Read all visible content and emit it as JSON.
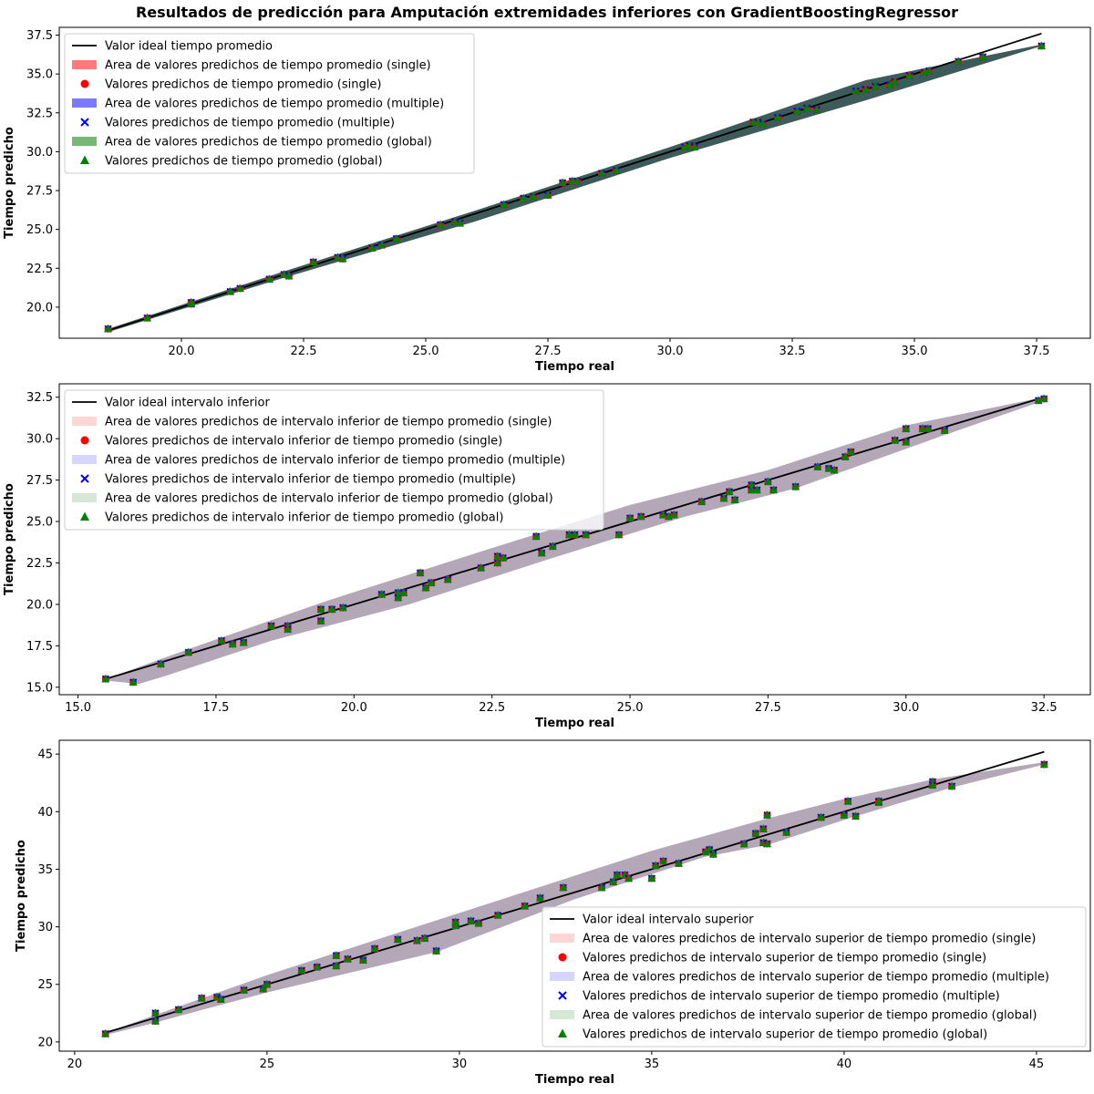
{
  "figure": {
    "suptitle": "Resultados de predicción para Amputación extremidades inferiores con GradientBoostingRegressor",
    "band_color": "#3d5a5a"
  },
  "chart_data": [
    {
      "type": "scatter",
      "xlabel": "Tiempo real",
      "ylabel": "Tiempo predicho",
      "xlim": [
        17.5,
        38.6
      ],
      "ylim": [
        18.0,
        38.0
      ],
      "xticks": [
        20.0,
        22.5,
        25.0,
        27.5,
        30.0,
        32.5,
        35.0,
        37.5
      ],
      "yticks": [
        20.0,
        22.5,
        25.0,
        27.5,
        30.0,
        32.5,
        35.0,
        37.5
      ],
      "xticklabels": [
        "20.0",
        "22.5",
        "25.0",
        "27.5",
        "30.0",
        "32.5",
        "35.0",
        "37.5"
      ],
      "yticklabels": [
        "20.0",
        "22.5",
        "25.0",
        "27.5",
        "30.0",
        "32.5",
        "35.0",
        "37.5"
      ],
      "band_color": "#3e5b5b",
      "legend_position": "upper-left",
      "legend": [
        {
          "kind": "line",
          "color": "#000000",
          "label": "Valor ideal tiempo promedio"
        },
        {
          "kind": "patch",
          "color": "#ff7a7a",
          "label": "Area de valores predichos de tiempo promedio (single)"
        },
        {
          "kind": "circle",
          "color": "#ff0000",
          "label": "Valores predichos de tiempo promedio (single)"
        },
        {
          "kind": "patch",
          "color": "#7a7aff",
          "label": "Area de valores predichos de tiempo promedio (multiple)"
        },
        {
          "kind": "cross",
          "color": "#0000ff",
          "label": "Valores predichos de tiempo promedio (multiple)"
        },
        {
          "kind": "patch",
          "color": "#77b877",
          "label": "Area de valores predichos de tiempo promedio (global)"
        },
        {
          "kind": "triangle",
          "color": "#008000",
          "label": "Valores predichos de tiempo promedio (global)"
        }
      ],
      "ideal_line": [
        [
          18.5,
          18.5
        ],
        [
          37.6,
          37.6
        ]
      ],
      "band_upper": [
        [
          18.5,
          18.6
        ],
        [
          22.0,
          22.2
        ],
        [
          26.0,
          26.2
        ],
        [
          30.0,
          30.3
        ],
        [
          34.0,
          34.6
        ],
        [
          37.6,
          36.9
        ]
      ],
      "band_lower": [
        [
          18.5,
          18.4
        ],
        [
          22.0,
          21.8
        ],
        [
          26.0,
          25.5
        ],
        [
          30.0,
          29.6
        ],
        [
          34.0,
          33.3
        ],
        [
          37.6,
          36.8
        ]
      ],
      "points": [
        [
          18.5,
          18.6
        ],
        [
          19.3,
          19.3
        ],
        [
          20.2,
          20.2
        ],
        [
          20.2,
          20.3
        ],
        [
          21.0,
          21.0
        ],
        [
          21.2,
          21.2
        ],
        [
          21.8,
          21.8
        ],
        [
          22.1,
          22.1
        ],
        [
          22.2,
          22.0
        ],
        [
          22.7,
          22.9
        ],
        [
          23.2,
          23.2
        ],
        [
          23.3,
          23.1
        ],
        [
          23.9,
          23.8
        ],
        [
          24.1,
          24.0
        ],
        [
          24.4,
          24.4
        ],
        [
          25.3,
          25.3
        ],
        [
          25.6,
          25.5
        ],
        [
          25.7,
          25.4
        ],
        [
          26.6,
          26.6
        ],
        [
          27.0,
          27.0
        ],
        [
          27.2,
          27.1
        ],
        [
          27.5,
          27.2
        ],
        [
          27.8,
          28.0
        ],
        [
          28.0,
          28.1
        ],
        [
          28.1,
          28.1
        ],
        [
          28.6,
          28.6
        ],
        [
          28.9,
          28.8
        ],
        [
          30.3,
          30.3
        ],
        [
          30.4,
          30.4
        ],
        [
          30.5,
          30.3
        ],
        [
          31.7,
          31.9
        ],
        [
          31.8,
          31.9
        ],
        [
          31.9,
          31.8
        ],
        [
          32.2,
          32.2
        ],
        [
          32.6,
          32.6
        ],
        [
          32.8,
          32.8
        ],
        [
          33.0,
          32.7
        ],
        [
          33.8,
          33.9
        ],
        [
          34.0,
          34.0
        ],
        [
          34.2,
          34.2
        ],
        [
          34.5,
          34.3
        ],
        [
          34.6,
          34.5
        ],
        [
          34.9,
          34.9
        ],
        [
          35.2,
          35.1
        ],
        [
          35.3,
          35.2
        ],
        [
          35.9,
          35.8
        ],
        [
          36.4,
          36.1
        ],
        [
          37.6,
          36.8
        ]
      ]
    },
    {
      "type": "scatter",
      "xlabel": "Tiempo real",
      "ylabel": "Tiempo predicho",
      "xlim": [
        14.66,
        33.34
      ],
      "ylim": [
        14.55,
        33.31
      ],
      "xticks": [
        15.0,
        17.5,
        20.0,
        22.5,
        25.0,
        27.5,
        30.0,
        32.5
      ],
      "yticks": [
        15.0,
        17.5,
        20.0,
        22.5,
        25.0,
        27.5,
        30.0,
        32.5
      ],
      "xticklabels": [
        "15.0",
        "17.5",
        "20.0",
        "22.5",
        "25.0",
        "27.5",
        "30.0",
        "32.5"
      ],
      "yticklabels": [
        "15.0",
        "17.5",
        "20.0",
        "22.5",
        "25.0",
        "27.5",
        "30.0",
        "32.5"
      ],
      "band_color": "#b3a7b8",
      "legend_position": "upper-left",
      "legend": [
        {
          "kind": "line",
          "color": "#000000",
          "label": "Valor ideal intervalo inferior"
        },
        {
          "kind": "patch",
          "color": "#ffd5d5",
          "label": "Area de valores predichos de intervalo inferior de tiempo promedio (single)"
        },
        {
          "kind": "circle",
          "color": "#ff0000",
          "label": "Valores predichos de intervalo inferior de tiempo promedio (single)"
        },
        {
          "kind": "patch",
          "color": "#d5d5ff",
          "label": "Area de valores predichos de intervalo inferior de tiempo promedio (multiple)"
        },
        {
          "kind": "cross",
          "color": "#0000ff",
          "label": "Valores predichos de intervalo inferior de tiempo promedio (multiple)"
        },
        {
          "kind": "patch",
          "color": "#d5e8d5",
          "label": "Area de valores predichos de intervalo inferior de tiempo promedio (global)"
        },
        {
          "kind": "triangle",
          "color": "#008000",
          "label": "Valores predichos de intervalo inferior de tiempo promedio (global)"
        }
      ],
      "ideal_line": [
        [
          15.5,
          15.5
        ],
        [
          32.5,
          32.5
        ]
      ],
      "band_upper": [
        [
          15.5,
          15.5
        ],
        [
          17.0,
          17.3
        ],
        [
          19.5,
          20.2
        ],
        [
          22.5,
          23.4
        ],
        [
          25.0,
          26.0
        ],
        [
          27.5,
          28.1
        ],
        [
          30.0,
          30.8
        ],
        [
          32.5,
          32.5
        ]
      ],
      "band_lower": [
        [
          15.5,
          15.4
        ],
        [
          16.1,
          15.2
        ],
        [
          16.6,
          15.7
        ],
        [
          18.5,
          17.8
        ],
        [
          21.0,
          20.0
        ],
        [
          23.5,
          22.7
        ],
        [
          26.0,
          25.3
        ],
        [
          28.0,
          27.0
        ],
        [
          30.6,
          30.1
        ],
        [
          32.5,
          32.3
        ]
      ],
      "points": [
        [
          15.5,
          15.5
        ],
        [
          16.0,
          15.3
        ],
        [
          16.5,
          16.4
        ],
        [
          17.0,
          17.1
        ],
        [
          17.6,
          17.8
        ],
        [
          17.8,
          17.6
        ],
        [
          18.0,
          17.7
        ],
        [
          18.5,
          18.7
        ],
        [
          18.8,
          18.7
        ],
        [
          18.8,
          18.5
        ],
        [
          19.4,
          19.0
        ],
        [
          19.4,
          19.7
        ],
        [
          19.6,
          19.7
        ],
        [
          19.8,
          19.8
        ],
        [
          20.5,
          20.6
        ],
        [
          20.8,
          20.7
        ],
        [
          20.8,
          20.4
        ],
        [
          20.9,
          20.7
        ],
        [
          21.2,
          21.9
        ],
        [
          21.3,
          21.0
        ],
        [
          21.4,
          21.3
        ],
        [
          21.7,
          21.5
        ],
        [
          22.3,
          22.2
        ],
        [
          22.6,
          22.5
        ],
        [
          22.6,
          22.9
        ],
        [
          22.7,
          22.8
        ],
        [
          23.3,
          24.1
        ],
        [
          23.4,
          23.1
        ],
        [
          23.6,
          23.5
        ],
        [
          23.9,
          24.2
        ],
        [
          24.0,
          24.2
        ],
        [
          24.2,
          24.2
        ],
        [
          24.8,
          24.2
        ],
        [
          25.0,
          25.2
        ],
        [
          25.2,
          25.3
        ],
        [
          25.6,
          25.4
        ],
        [
          25.7,
          25.3
        ],
        [
          25.8,
          25.4
        ],
        [
          26.3,
          26.2
        ],
        [
          26.7,
          26.4
        ],
        [
          26.8,
          26.8
        ],
        [
          26.9,
          26.3
        ],
        [
          27.2,
          27.2
        ],
        [
          27.2,
          26.9
        ],
        [
          27.3,
          26.9
        ],
        [
          27.5,
          27.4
        ],
        [
          27.6,
          26.9
        ],
        [
          28.0,
          27.1
        ],
        [
          28.4,
          28.3
        ],
        [
          28.6,
          28.2
        ],
        [
          28.7,
          28.1
        ],
        [
          28.9,
          28.9
        ],
        [
          29.0,
          29.2
        ],
        [
          29.8,
          29.9
        ],
        [
          30.0,
          30.6
        ],
        [
          30.0,
          29.8
        ],
        [
          30.3,
          30.6
        ],
        [
          30.4,
          30.6
        ],
        [
          30.7,
          30.5
        ],
        [
          32.4,
          32.3
        ],
        [
          32.5,
          32.4
        ]
      ]
    },
    {
      "type": "scatter",
      "xlabel": "Tiempo real",
      "ylabel": "Tiempo predicho",
      "xlim": [
        19.6,
        46.4
      ],
      "ylim": [
        19.2,
        46.2
      ],
      "xticks": [
        20,
        25,
        30,
        35,
        40,
        45
      ],
      "yticks": [
        20,
        25,
        30,
        35,
        40,
        45
      ],
      "xticklabels": [
        "20",
        "25",
        "30",
        "35",
        "40",
        "45"
      ],
      "yticklabels": [
        "20",
        "25",
        "30",
        "35",
        "40",
        "45"
      ],
      "band_color": "#b3a7b8",
      "legend_position": "lower-right",
      "legend": [
        {
          "kind": "line",
          "color": "#000000",
          "label": "Valor ideal intervalo superior"
        },
        {
          "kind": "patch",
          "color": "#ffd5d5",
          "label": "Area de valores predichos de intervalo superior de tiempo promedio (single)"
        },
        {
          "kind": "circle",
          "color": "#ff0000",
          "label": "Valores predichos de intervalo superior de tiempo promedio (single)"
        },
        {
          "kind": "patch",
          "color": "#d5d5ff",
          "label": "Area de valores predichos de intervalo superior de tiempo promedio (multiple)"
        },
        {
          "kind": "cross",
          "color": "#0000ff",
          "label": "Valores predichos de intervalo superior de tiempo promedio (multiple)"
        },
        {
          "kind": "patch",
          "color": "#d5e8d5",
          "label": "Area de valores predichos de intervalo superior de tiempo promedio (global)"
        },
        {
          "kind": "triangle",
          "color": "#008000",
          "label": "Valores predichos de intervalo superior de tiempo promedio (global)"
        }
      ],
      "ideal_line": [
        [
          20.8,
          20.8
        ],
        [
          45.2,
          45.2
        ]
      ],
      "band_upper": [
        [
          20.8,
          20.8
        ],
        [
          25.0,
          25.8
        ],
        [
          30.0,
          31.2
        ],
        [
          35.0,
          36.6
        ],
        [
          38.0,
          39.4
        ],
        [
          40.0,
          41.1
        ],
        [
          42.3,
          42.8
        ],
        [
          45.2,
          44.3
        ]
      ],
      "band_lower": [
        [
          20.8,
          20.6
        ],
        [
          22.0,
          21.6
        ],
        [
          25.0,
          24.3
        ],
        [
          29.4,
          27.8
        ],
        [
          33.0,
          32.4
        ],
        [
          36.4,
          36.1
        ],
        [
          38.0,
          37.1
        ],
        [
          40.2,
          39.5
        ],
        [
          42.8,
          42.1
        ],
        [
          45.2,
          44.1
        ]
      ],
      "points": [
        [
          20.8,
          20.7
        ],
        [
          22.1,
          22.5
        ],
        [
          22.1,
          21.8
        ],
        [
          22.7,
          22.8
        ],
        [
          23.3,
          23.8
        ],
        [
          23.7,
          23.9
        ],
        [
          23.8,
          23.7
        ],
        [
          24.4,
          24.5
        ],
        [
          24.9,
          24.6
        ],
        [
          25.0,
          25.0
        ],
        [
          25.9,
          26.2
        ],
        [
          26.3,
          26.5
        ],
        [
          26.8,
          26.6
        ],
        [
          26.8,
          27.5
        ],
        [
          27.1,
          27.2
        ],
        [
          27.5,
          27.1
        ],
        [
          27.8,
          28.1
        ],
        [
          28.4,
          28.9
        ],
        [
          28.9,
          28.8
        ],
        [
          29.1,
          29.0
        ],
        [
          29.4,
          27.9
        ],
        [
          29.9,
          30.1
        ],
        [
          29.9,
          30.4
        ],
        [
          30.3,
          30.5
        ],
        [
          30.5,
          30.3
        ],
        [
          31.0,
          31.0
        ],
        [
          31.7,
          31.8
        ],
        [
          32.1,
          32.5
        ],
        [
          32.7,
          33.4
        ],
        [
          33.7,
          33.4
        ],
        [
          34.0,
          33.9
        ],
        [
          34.1,
          34.5
        ],
        [
          34.3,
          34.5
        ],
        [
          34.4,
          34.2
        ],
        [
          35.0,
          34.2
        ],
        [
          35.1,
          35.3
        ],
        [
          35.3,
          35.7
        ],
        [
          35.7,
          35.5
        ],
        [
          36.4,
          36.5
        ],
        [
          36.5,
          36.7
        ],
        [
          36.6,
          36.3
        ],
        [
          37.4,
          37.2
        ],
        [
          37.7,
          38.1
        ],
        [
          37.9,
          38.5
        ],
        [
          37.9,
          37.3
        ],
        [
          38.0,
          37.2
        ],
        [
          38.0,
          39.7
        ],
        [
          38.5,
          38.2
        ],
        [
          39.4,
          39.5
        ],
        [
          40.0,
          39.7
        ],
        [
          40.1,
          40.9
        ],
        [
          40.3,
          39.6
        ],
        [
          40.9,
          40.8
        ],
        [
          40.9,
          40.9
        ],
        [
          42.3,
          42.6
        ],
        [
          42.3,
          42.3
        ],
        [
          42.8,
          42.2
        ],
        [
          45.2,
          44.1
        ]
      ]
    }
  ]
}
